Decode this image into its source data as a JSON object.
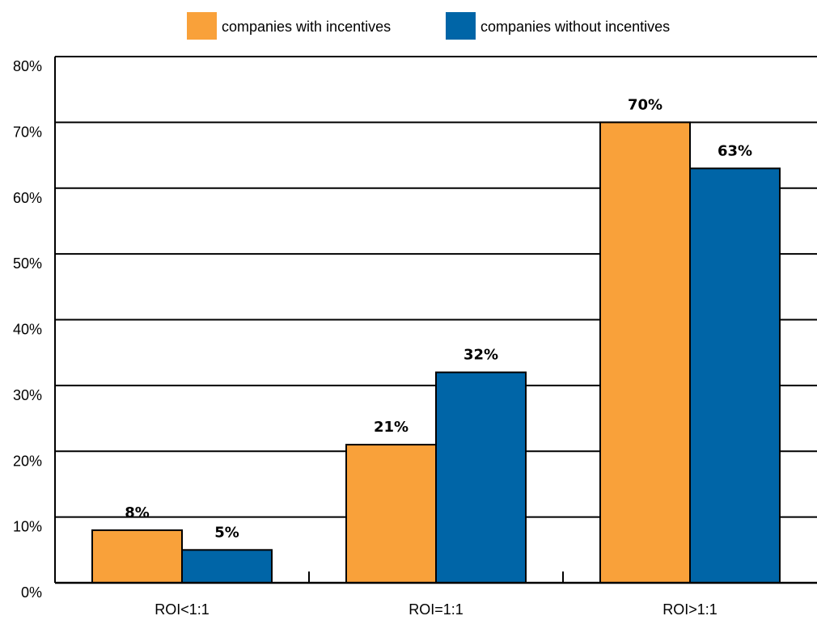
{
  "chart_data": {
    "type": "bar",
    "categories": [
      "ROI<1:1",
      "ROI=1:1",
      "ROI>1:1"
    ],
    "series": [
      {
        "name": "companies with incentives",
        "color": "#F9A13A",
        "values": [
          8,
          21,
          70
        ],
        "labels": [
          "8%",
          "21%",
          "70%"
        ]
      },
      {
        "name": "companies without incentives",
        "color": "#0065A7",
        "values": [
          5,
          32,
          63
        ],
        "labels": [
          "5%",
          "32%",
          "63%"
        ]
      }
    ],
    "ylim": [
      0,
      80
    ],
    "yticks": [
      {
        "value": 0,
        "label": "0%"
      },
      {
        "value": 10,
        "label": "10%"
      },
      {
        "value": 20,
        "label": "20%"
      },
      {
        "value": 30,
        "label": "30%"
      },
      {
        "value": 40,
        "label": "40%"
      },
      {
        "value": 50,
        "label": "50%"
      },
      {
        "value": 60,
        "label": "60%"
      },
      {
        "value": 70,
        "label": "70%"
      },
      {
        "value": 80,
        "label": "80%"
      }
    ],
    "grid": true,
    "legend": "top-center",
    "title": "",
    "xlabel": "",
    "ylabel": ""
  }
}
